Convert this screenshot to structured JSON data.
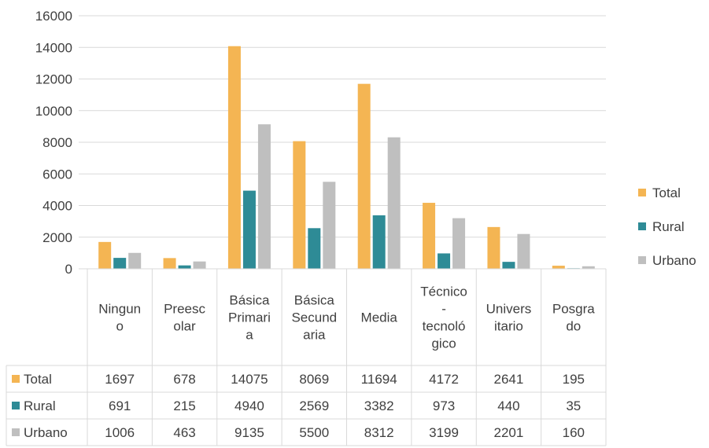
{
  "chart_data": {
    "type": "bar",
    "categories": [
      [
        "Ningun",
        "o"
      ],
      [
        "Preesc",
        "olar"
      ],
      [
        "Básica",
        "Primari",
        "a"
      ],
      [
        "Básica",
        "Secund",
        "aria"
      ],
      [
        "Media"
      ],
      [
        "Técnico",
        "-",
        "tecnoló",
        "gico"
      ],
      [
        "Univers",
        "itario"
      ],
      [
        "Posgra",
        "do"
      ]
    ],
    "series": [
      {
        "name": "Total",
        "color": "#f4b553",
        "values": [
          1697,
          678,
          14075,
          8069,
          11694,
          4172,
          2641,
          195
        ]
      },
      {
        "name": "Rural",
        "color": "#2e8b96",
        "values": [
          691,
          215,
          4940,
          2569,
          3382,
          973,
          440,
          35
        ]
      },
      {
        "name": "Urbano",
        "color": "#bfbfbf",
        "values": [
          1006,
          463,
          9135,
          5500,
          8312,
          3199,
          2201,
          160
        ]
      }
    ],
    "ylim": [
      0,
      16000
    ],
    "yticks": [
      0,
      2000,
      4000,
      6000,
      8000,
      10000,
      12000,
      14000,
      16000
    ],
    "grid": true,
    "legend": "right",
    "data_table": true
  }
}
